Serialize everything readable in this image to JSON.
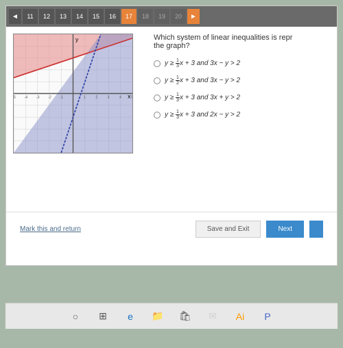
{
  "topbar": {
    "back": "◄",
    "forward": "►",
    "pages": [
      "11",
      "12",
      "13",
      "14",
      "15",
      "16",
      "17",
      "18",
      "19",
      "20"
    ],
    "active_index": 6,
    "dim_from": 7
  },
  "question": {
    "text_l1": "Which system of linear inequalities is repr",
    "text_l2": "the graph?"
  },
  "options": [
    {
      "pre": "y ≥ ",
      "num": "1",
      "den": "3",
      "post": "x + 3 and 3x − y > 2"
    },
    {
      "pre": "y ≥ ",
      "num": "1",
      "den": "2",
      "post": "x + 3 and 3x − y > 2"
    },
    {
      "pre": "y ≥ ",
      "num": "1",
      "den": "3",
      "post": "x + 3 and 3x + y > 2"
    },
    {
      "pre": "y ≥ ",
      "num": "1",
      "den": "3",
      "post": "x + 3 and 2x − y > 2"
    }
  ],
  "graph": {
    "xmin": -5,
    "xmax": 5,
    "ymin": -5,
    "ymax": 5,
    "grid_color": "#d0d0d0",
    "axis_color": "#555",
    "region1_color": "#e89090",
    "region1_opacity": 0.6,
    "region2_color": "#8890c8",
    "region2_opacity": 0.5,
    "line1_color": "#cc3333",
    "line2_color": "#3344aa",
    "xlabel": "x",
    "ylabel": "y"
  },
  "footer": {
    "mark": "Mark this and return",
    "save": "Save and Exit",
    "next": "Next"
  },
  "taskbar": {
    "icons": [
      {
        "name": "cortana-icon",
        "glyph": "○",
        "color": "#555"
      },
      {
        "name": "taskview-icon",
        "glyph": "⊞",
        "color": "#555"
      },
      {
        "name": "edge-icon",
        "glyph": "e",
        "color": "#1a73c4"
      },
      {
        "name": "explorer-icon",
        "glyph": "📁",
        "color": "#d9a640"
      },
      {
        "name": "store-icon",
        "glyph": "🛍",
        "color": "#555"
      },
      {
        "name": "mail-icon",
        "glyph": "✉",
        "color": "#d0d0d0"
      },
      {
        "name": "illustrator-icon",
        "glyph": "Ai",
        "color": "#ff9a00"
      },
      {
        "name": "app-icon",
        "glyph": "P",
        "color": "#4466cc"
      }
    ]
  }
}
